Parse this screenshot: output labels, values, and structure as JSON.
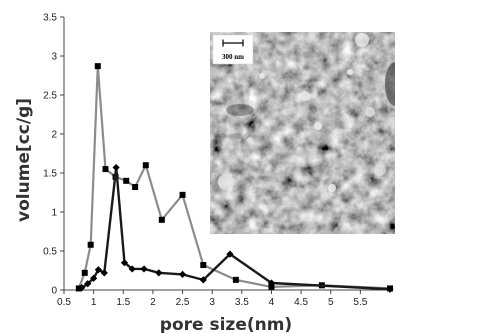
{
  "chart_data": {
    "type": "line",
    "title": "",
    "xlabel": "pore size(nm)",
    "ylabel": "volume[cc/g]",
    "xlim": [
      0.5,
      6.0
    ],
    "ylim": [
      0,
      3.5
    ],
    "xticks": [
      "0.5",
      "1",
      "1.5",
      "2",
      "2.5",
      "3",
      "3.5",
      "4",
      "4.5",
      "5",
      "5.5"
    ],
    "yticks": [
      "0",
      "0.5",
      "1",
      "1.5",
      "2",
      "2.5",
      "3",
      "3.5"
    ],
    "grid": false,
    "legend": "none",
    "series": [
      {
        "marker": "square",
        "color": "#8c8c8c",
        "x": [
          0.75,
          0.85,
          0.95,
          1.07,
          1.2,
          1.37,
          1.55,
          1.7,
          1.88,
          2.15,
          2.5,
          2.85,
          3.4,
          4.0,
          4.85,
          6.0
        ],
        "y": [
          0.02,
          0.22,
          0.58,
          2.87,
          1.55,
          1.45,
          1.4,
          1.32,
          1.6,
          0.9,
          1.22,
          0.32,
          0.13,
          0.04,
          0.06,
          0.02
        ]
      },
      {
        "marker": "diamond",
        "color": "#1a1a1a",
        "x": [
          0.8,
          0.9,
          1.0,
          1.08,
          1.18,
          1.38,
          1.52,
          1.65,
          1.85,
          2.1,
          2.5,
          2.85,
          3.3,
          4.0,
          6.0
        ],
        "y": [
          0.03,
          0.08,
          0.15,
          0.26,
          0.22,
          1.57,
          0.35,
          0.27,
          0.27,
          0.22,
          0.2,
          0.13,
          0.46,
          0.09,
          0.01
        ]
      }
    ],
    "inset": {
      "kind": "SEM micrograph",
      "scale_bar_label": "300 nm"
    }
  }
}
